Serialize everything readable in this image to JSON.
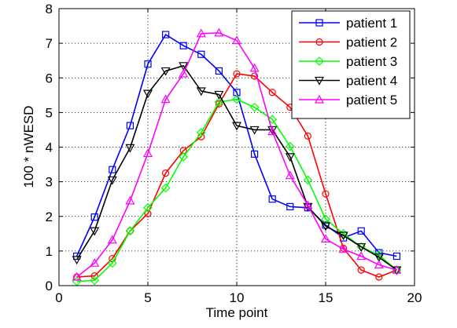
{
  "chart_data": {
    "type": "line",
    "title": "",
    "xlabel": "Time point",
    "ylabel": "100 * nWESD",
    "xlim": [
      0,
      20
    ],
    "ylim": [
      0,
      8
    ],
    "xticks": [
      0,
      5,
      10,
      15,
      20
    ],
    "yticks": [
      0,
      1,
      2,
      3,
      4,
      5,
      6,
      7,
      8
    ],
    "grid": "dotted",
    "legend_position": "top-right",
    "x": [
      1,
      2,
      3,
      4,
      5,
      6,
      7,
      8,
      9,
      10,
      11,
      12,
      13,
      14,
      15,
      16,
      17,
      18,
      19
    ],
    "series": [
      {
        "name": "patient 1",
        "color": "#0000ff",
        "marker": "square",
        "values": [
          0.85,
          1.98,
          3.35,
          4.62,
          6.4,
          7.25,
          6.93,
          6.68,
          6.2,
          5.58,
          3.8,
          2.5,
          2.28,
          2.25,
          1.75,
          1.38,
          1.58,
          0.95,
          0.85
        ]
      },
      {
        "name": "patient 2",
        "color": "#ff0000",
        "marker": "circle",
        "values": [
          0.25,
          0.28,
          0.78,
          1.58,
          2.08,
          3.25,
          3.9,
          4.3,
          5.25,
          6.12,
          6.05,
          5.58,
          5.15,
          4.32,
          2.65,
          1.08,
          0.45,
          0.25,
          0.45
        ]
      },
      {
        "name": "patient 3",
        "color": "#00ff00",
        "marker": "diamond",
        "values": [
          0.12,
          0.15,
          0.65,
          1.58,
          2.25,
          2.82,
          3.72,
          4.42,
          5.3,
          5.38,
          5.15,
          4.8,
          4.02,
          3.05,
          1.92,
          1.5,
          1.12,
          0.88,
          0.45
        ]
      },
      {
        "name": "patient 4",
        "color": "#000000",
        "marker": "triangle-down",
        "values": [
          0.75,
          1.58,
          3.05,
          3.98,
          5.55,
          6.2,
          6.35,
          5.62,
          5.52,
          4.62,
          4.5,
          4.5,
          3.72,
          2.28,
          1.72,
          1.45,
          1.12,
          0.82,
          0.45
        ]
      },
      {
        "name": "patient 5",
        "color": "#ff00ff",
        "marker": "triangle-up",
        "values": [
          0.25,
          0.65,
          1.32,
          2.45,
          3.82,
          5.38,
          6.12,
          7.28,
          7.3,
          7.08,
          6.28,
          4.45,
          3.18,
          2.32,
          1.35,
          1.05,
          0.85,
          0.6,
          0.45
        ]
      }
    ]
  }
}
